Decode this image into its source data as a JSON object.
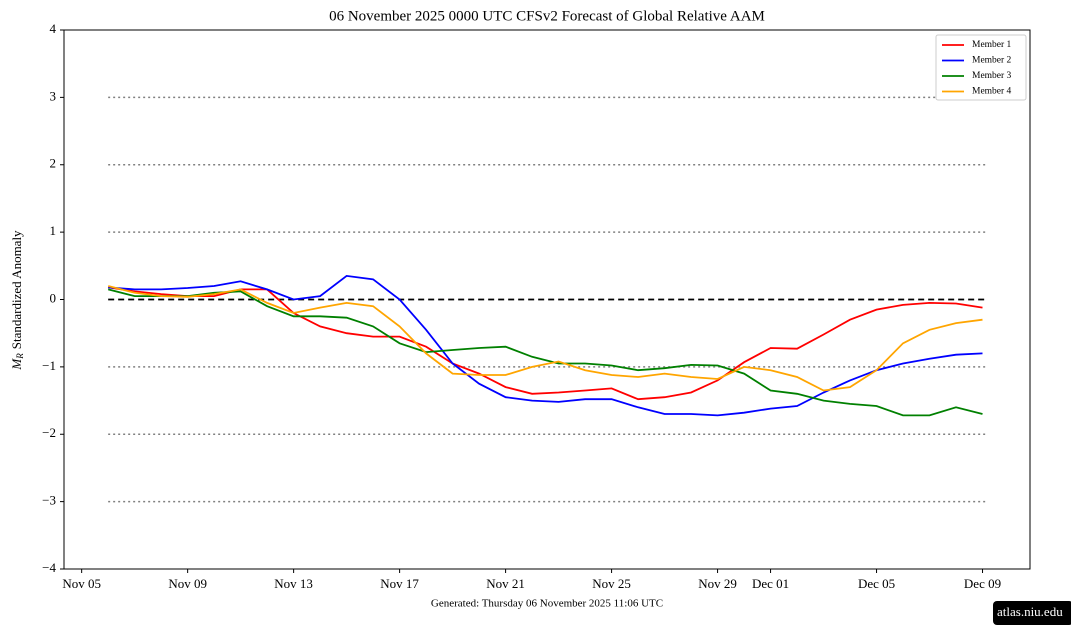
{
  "chart_data": {
    "type": "line",
    "title": "06  November  2025 0000 UTC   CFSv2 Forecast of Global Relative AAM",
    "ylabel_symbol": "M",
    "ylabel_subscript": "R",
    "ylabel": "Standardized Anomaly",
    "footer": "Generated: Thursday  06  November  2025  11:06 UTC",
    "badge": "atlas.niu.edu",
    "x": [
      "2025-11-06",
      "2025-11-07",
      "2025-11-08",
      "2025-11-09",
      "2025-11-10",
      "2025-11-11",
      "2025-11-12",
      "2025-11-13",
      "2025-11-14",
      "2025-11-15",
      "2025-11-16",
      "2025-11-17",
      "2025-11-18",
      "2025-11-19",
      "2025-11-20",
      "2025-11-21",
      "2025-11-22",
      "2025-11-23",
      "2025-11-24",
      "2025-11-25",
      "2025-11-26",
      "2025-11-27",
      "2025-11-28",
      "2025-11-29",
      "2025-11-30",
      "2025-12-01",
      "2025-12-02",
      "2025-12-03",
      "2025-12-04",
      "2025-12-05",
      "2025-12-06",
      "2025-12-07",
      "2025-12-08",
      "2025-12-09"
    ],
    "series": [
      {
        "name": "Member 1",
        "color": "#ff0000",
        "values": [
          0.18,
          0.12,
          0.08,
          0.05,
          0.05,
          0.15,
          0.15,
          -0.2,
          -0.4,
          -0.5,
          -0.55,
          -0.55,
          -0.7,
          -0.95,
          -1.1,
          -1.3,
          -1.4,
          -1.38,
          -1.35,
          -1.32,
          -1.48,
          -1.45,
          -1.38,
          -1.2,
          -0.93,
          -0.72,
          -0.73,
          -0.52,
          -0.3,
          -0.15,
          -0.08,
          -0.05,
          -0.06,
          -0.12
        ]
      },
      {
        "name": "Member 2",
        "color": "#0000ff",
        "values": [
          0.18,
          0.15,
          0.15,
          0.17,
          0.2,
          0.27,
          0.15,
          0.0,
          0.05,
          0.35,
          0.3,
          0.0,
          -0.45,
          -0.95,
          -1.25,
          -1.45,
          -1.5,
          -1.52,
          -1.48,
          -1.48,
          -1.6,
          -1.7,
          -1.7,
          -1.72,
          -1.68,
          -1.62,
          -1.58,
          -1.38,
          -1.2,
          -1.05,
          -0.95,
          -0.88,
          -0.82,
          -0.8
        ]
      },
      {
        "name": "Member 3",
        "color": "#008000",
        "values": [
          0.15,
          0.05,
          0.05,
          0.05,
          0.1,
          0.12,
          -0.1,
          -0.25,
          -0.25,
          -0.27,
          -0.4,
          -0.65,
          -0.78,
          -0.75,
          -0.72,
          -0.7,
          -0.85,
          -0.95,
          -0.95,
          -0.98,
          -1.05,
          -1.02,
          -0.97,
          -0.98,
          -1.1,
          -1.35,
          -1.4,
          -1.5,
          -1.55,
          -1.58,
          -1.72,
          -1.72,
          -1.6,
          -1.7
        ]
      },
      {
        "name": "Member 4",
        "color": "#ffa500",
        "values": [
          0.2,
          0.1,
          0.05,
          0.04,
          0.08,
          0.15,
          -0.05,
          -0.2,
          -0.12,
          -0.05,
          -0.1,
          -0.4,
          -0.8,
          -1.1,
          -1.12,
          -1.12,
          -1.0,
          -0.92,
          -1.05,
          -1.12,
          -1.15,
          -1.1,
          -1.15,
          -1.18,
          -1.0,
          -1.05,
          -1.15,
          -1.35,
          -1.3,
          -1.05,
          -0.65,
          -0.45,
          -0.35,
          -0.3
        ]
      }
    ],
    "xlim": [
      "2025-11-04T08:00Z",
      "2025-12-10T19:00Z"
    ],
    "xticks": [
      {
        "value": "2025-11-05",
        "label": "Nov 05"
      },
      {
        "value": "2025-11-09",
        "label": "Nov 09"
      },
      {
        "value": "2025-11-13",
        "label": "Nov 13"
      },
      {
        "value": "2025-11-17",
        "label": "Nov 17"
      },
      {
        "value": "2025-11-21",
        "label": "Nov 21"
      },
      {
        "value": "2025-11-25",
        "label": "Nov 25"
      },
      {
        "value": "2025-11-29",
        "label": "Nov 29"
      },
      {
        "value": "2025-12-01",
        "label": "Dec 01"
      },
      {
        "value": "2025-12-05",
        "label": "Dec 05"
      },
      {
        "value": "2025-12-09",
        "label": "Dec 09"
      }
    ],
    "ylim": [
      -4,
      4
    ],
    "yticks": [
      {
        "value": -4,
        "label": "−4"
      },
      {
        "value": -3,
        "label": "−3"
      },
      {
        "value": -2,
        "label": "−2"
      },
      {
        "value": -1,
        "label": "−1"
      },
      0,
      1,
      2,
      3,
      4
    ],
    "hlines_dotted": [
      -3,
      -2,
      -1,
      1,
      2,
      3
    ],
    "hlines_dashed": [
      0
    ],
    "legend": "upper right"
  }
}
